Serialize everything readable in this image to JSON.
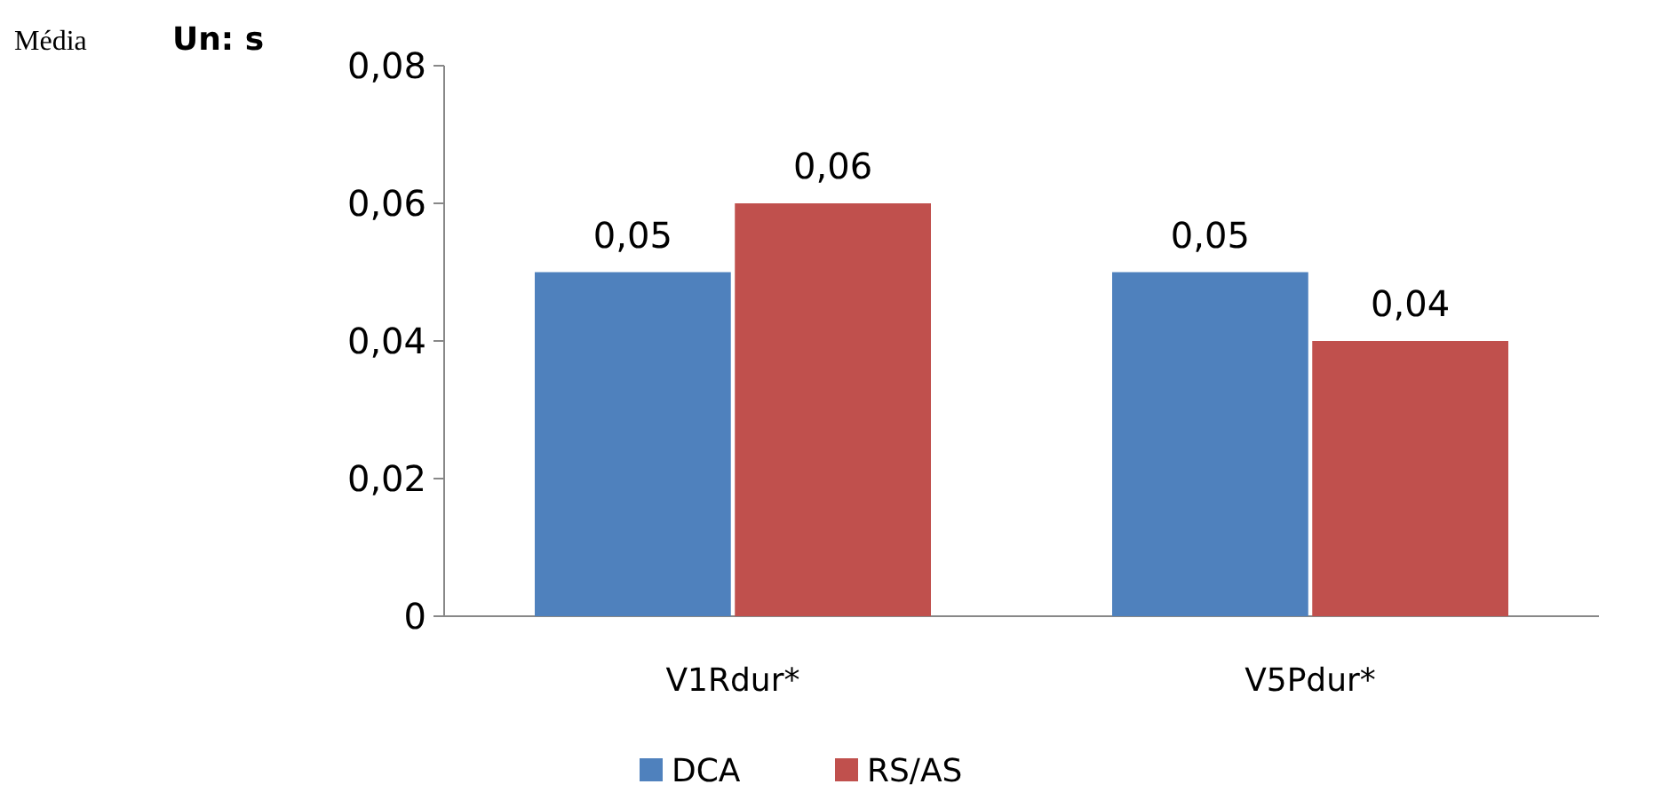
{
  "chart_data": {
    "type": "bar",
    "annotations": [
      "Média",
      "Un: s"
    ],
    "categories": [
      "V1Rdur*",
      "V5Pdur*"
    ],
    "series": [
      {
        "name": "DCA",
        "color": "#4f81bd",
        "values": [
          0.05,
          0.05
        ],
        "value_labels": [
          "0,05",
          "0,05"
        ]
      },
      {
        "name": "RS/AS",
        "color": "#c0504d",
        "values": [
          0.06,
          0.04
        ],
        "value_labels": [
          "0,06",
          "0,04"
        ]
      }
    ],
    "ylim": [
      0,
      0.08
    ],
    "yticks": [
      {
        "value": 0,
        "label": "0"
      },
      {
        "value": 0.02,
        "label": "0,02"
      },
      {
        "value": 0.04,
        "label": "0,04"
      },
      {
        "value": 0.06,
        "label": "0,06"
      },
      {
        "value": 0.08,
        "label": "0,08"
      }
    ],
    "grid": false,
    "legend": "bottom"
  }
}
